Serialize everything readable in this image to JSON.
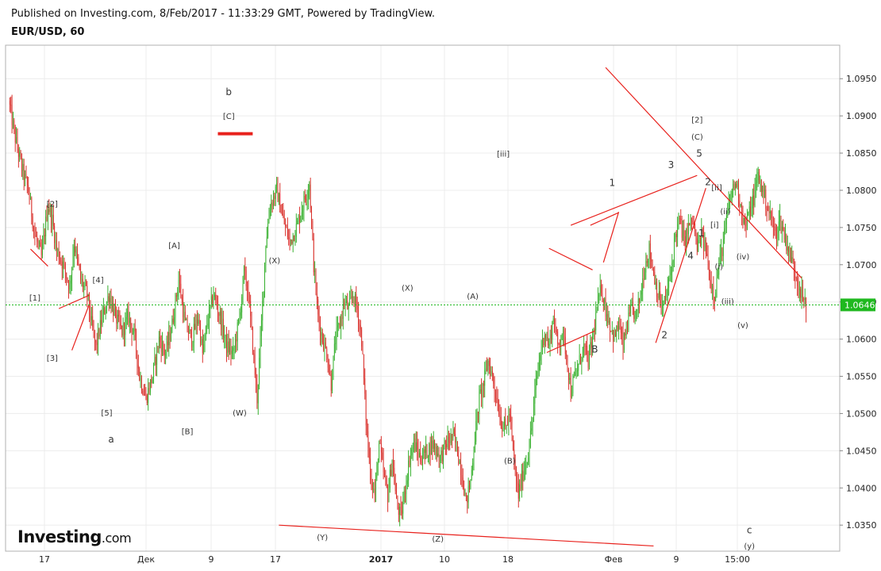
{
  "header": {
    "published": "Published on Investing.com, 8/Feb/2017 - 11:33:29 GMT, Powered by TradingView.",
    "symbol": "EUR/USD, 60"
  },
  "logo": {
    "main": "Investing",
    "suffix": ".com"
  },
  "colors": {
    "up": "#36b02d",
    "down": "#d9302b",
    "trend": "#e8211c",
    "current_line": "#1fb81f",
    "grid": "#ececec"
  },
  "chart_data": {
    "type": "candlestick",
    "symbol": "EUR/USD",
    "timeframe": "60",
    "ylim": [
      1.0315,
      1.0995
    ],
    "y_ticks": [
      "1.0950",
      "1.0900",
      "1.0850",
      "1.0800",
      "1.0750",
      "1.0700",
      "1.0650",
      "1.0600",
      "1.0550",
      "1.0500",
      "1.0450",
      "1.0400",
      "1.0350"
    ],
    "x_ticks": [
      "17",
      "Дек",
      "9",
      "17",
      "2017",
      "10",
      "18",
      "Фев",
      "9",
      "15:00"
    ],
    "current_price": "1.0646",
    "price_path": [
      [
        0,
        1.092
      ],
      [
        3,
        1.087
      ],
      [
        6,
        1.083
      ],
      [
        9,
        1.08
      ],
      [
        12,
        1.074
      ],
      [
        15,
        1.071
      ],
      [
        18,
        1.078
      ],
      [
        20,
        1.076
      ],
      [
        22,
        1.072
      ],
      [
        25,
        1.07
      ],
      [
        28,
        1.067
      ],
      [
        30,
        1.073
      ],
      [
        33,
        1.068
      ],
      [
        36,
        1.066
      ],
      [
        38,
        1.062
      ],
      [
        40,
        1.059
      ],
      [
        43,
        1.063
      ],
      [
        46,
        1.066
      ],
      [
        49,
        1.063
      ],
      [
        52,
        1.061
      ],
      [
        55,
        1.063
      ],
      [
        58,
        1.06
      ],
      [
        60,
        1.055
      ],
      [
        63,
        1.052
      ],
      [
        66,
        1.055
      ],
      [
        69,
        1.06
      ],
      [
        72,
        1.058
      ],
      [
        75,
        1.062
      ],
      [
        78,
        1.068
      ],
      [
        81,
        1.062
      ],
      [
        84,
        1.06
      ],
      [
        87,
        1.063
      ],
      [
        89,
        1.058
      ],
      [
        91,
        1.062
      ],
      [
        94,
        1.066
      ],
      [
        97,
        1.063
      ],
      [
        100,
        1.059
      ],
      [
        103,
        1.058
      ],
      [
        106,
        1.063
      ],
      [
        108,
        1.069
      ],
      [
        110,
        1.066
      ],
      [
        112,
        1.059
      ],
      [
        114,
        1.052
      ],
      [
        116,
        1.062
      ],
      [
        118,
        1.073
      ],
      [
        120,
        1.078
      ],
      [
        123,
        1.08
      ],
      [
        126,
        1.076
      ],
      [
        129,
        1.073
      ],
      [
        132,
        1.075
      ],
      [
        135,
        1.078
      ],
      [
        138,
        1.081
      ],
      [
        140,
        1.07
      ],
      [
        142,
        1.063
      ],
      [
        144,
        1.06
      ],
      [
        146,
        1.058
      ],
      [
        148,
        1.054
      ],
      [
        150,
        1.06
      ],
      [
        152,
        1.062
      ],
      [
        154,
        1.065
      ],
      [
        156,
        1.064
      ],
      [
        158,
        1.066
      ],
      [
        160,
        1.064
      ],
      [
        162,
        1.06
      ],
      [
        164,
        1.049
      ],
      [
        166,
        1.042
      ],
      [
        168,
        1.039
      ],
      [
        170,
        1.046
      ],
      [
        172,
        1.042
      ],
      [
        174,
        1.039
      ],
      [
        176,
        1.044
      ],
      [
        178,
        1.038
      ],
      [
        180,
        1.036
      ],
      [
        182,
        1.04
      ],
      [
        184,
        1.044
      ],
      [
        186,
        1.046
      ],
      [
        189,
        1.044
      ],
      [
        192,
        1.045
      ],
      [
        195,
        1.046
      ],
      [
        198,
        1.044
      ],
      [
        201,
        1.046
      ],
      [
        204,
        1.047
      ],
      [
        206,
        1.045
      ],
      [
        208,
        1.042
      ],
      [
        210,
        1.038
      ],
      [
        212,
        1.041
      ],
      [
        214,
        1.047
      ],
      [
        216,
        1.052
      ],
      [
        218,
        1.054
      ],
      [
        220,
        1.057
      ],
      [
        222,
        1.055
      ],
      [
        224,
        1.052
      ],
      [
        226,
        1.049
      ],
      [
        228,
        1.048
      ],
      [
        230,
        1.05
      ],
      [
        232,
        1.043
      ],
      [
        234,
        1.039
      ],
      [
        236,
        1.042
      ],
      [
        238,
        1.044
      ],
      [
        240,
        1.048
      ],
      [
        242,
        1.054
      ],
      [
        244,
        1.058
      ],
      [
        246,
        1.061
      ],
      [
        248,
        1.059
      ],
      [
        250,
        1.063
      ],
      [
        252,
        1.059
      ],
      [
        254,
        1.061
      ],
      [
        256,
        1.058
      ],
      [
        258,
        1.053
      ],
      [
        260,
        1.055
      ],
      [
        262,
        1.057
      ],
      [
        264,
        1.059
      ],
      [
        266,
        1.057
      ],
      [
        268,
        1.06
      ],
      [
        270,
        1.064
      ],
      [
        272,
        1.067
      ],
      [
        274,
        1.064
      ],
      [
        276,
        1.062
      ],
      [
        278,
        1.06
      ],
      [
        280,
        1.062
      ],
      [
        282,
        1.059
      ],
      [
        284,
        1.062
      ],
      [
        286,
        1.064
      ],
      [
        288,
        1.063
      ],
      [
        290,
        1.066
      ],
      [
        292,
        1.07
      ],
      [
        294,
        1.072
      ],
      [
        296,
        1.069
      ],
      [
        298,
        1.066
      ],
      [
        300,
        1.064
      ],
      [
        302,
        1.066
      ],
      [
        304,
        1.069
      ],
      [
        306,
        1.074
      ],
      [
        308,
        1.076
      ],
      [
        310,
        1.073
      ],
      [
        312,
        1.075
      ],
      [
        314,
        1.076
      ],
      [
        316,
        1.072
      ],
      [
        318,
        1.074
      ],
      [
        320,
        1.072
      ],
      [
        322,
        1.068
      ],
      [
        324,
        1.066
      ],
      [
        326,
        1.07
      ],
      [
        328,
        1.073
      ],
      [
        330,
        1.077
      ],
      [
        332,
        1.08
      ],
      [
        334,
        1.081
      ],
      [
        336,
        1.078
      ],
      [
        338,
        1.075
      ],
      [
        340,
        1.077
      ],
      [
        342,
        1.079
      ],
      [
        344,
        1.082
      ],
      [
        346,
        1.08
      ],
      [
        348,
        1.078
      ],
      [
        350,
        1.076
      ],
      [
        352,
        1.074
      ],
      [
        354,
        1.076
      ],
      [
        356,
        1.074
      ],
      [
        358,
        1.072
      ],
      [
        360,
        1.07
      ],
      [
        362,
        1.068
      ],
      [
        364,
        1.066
      ],
      [
        366,
        1.064
      ]
    ],
    "annotations": [
      {
        "text": "b",
        "x": 101,
        "y": 1.0928,
        "size": 12
      },
      {
        "text": "[C]",
        "x": 101,
        "y": 1.0896,
        "size": 10
      },
      {
        "text": "[2]",
        "x": 20,
        "y": 1.0778,
        "size": 10
      },
      {
        "text": "[4]",
        "x": 41,
        "y": 1.0676,
        "size": 10
      },
      {
        "text": "[1]",
        "x": 12,
        "y": 1.0652,
        "size": 10
      },
      {
        "text": "[3]",
        "x": 20,
        "y": 1.0571,
        "size": 10
      },
      {
        "text": "[5]",
        "x": 45,
        "y": 1.0497,
        "size": 10
      },
      {
        "text": "a",
        "x": 47,
        "y": 1.0461,
        "size": 12
      },
      {
        "text": "[A]",
        "x": 76,
        "y": 1.0722,
        "size": 10
      },
      {
        "text": "[B]",
        "x": 82,
        "y": 1.0472,
        "size": 10
      },
      {
        "text": "(X)",
        "x": 122,
        "y": 1.0702,
        "size": 10
      },
      {
        "text": "(W)",
        "x": 106,
        "y": 1.0497,
        "size": 10
      },
      {
        "text": "(X)",
        "x": 183,
        "y": 1.0665,
        "size": 10
      },
      {
        "text": "(Y)",
        "x": 144,
        "y": 1.033,
        "size": 10
      },
      {
        "text": "(Z)",
        "x": 197,
        "y": 1.0328,
        "size": 10
      },
      {
        "text": "(A)",
        "x": 213,
        "y": 1.0654,
        "size": 10
      },
      {
        "text": "(B)",
        "x": 230,
        "y": 1.0433,
        "size": 10
      },
      {
        "text": "[iii]",
        "x": 227,
        "y": 1.0845,
        "size": 10
      },
      {
        "text": "1",
        "x": 277,
        "y": 1.0806,
        "size": 12
      },
      {
        "text": "B",
        "x": 269,
        "y": 1.0582,
        "size": 12
      },
      {
        "text": "3",
        "x": 304,
        "y": 1.083,
        "size": 12
      },
      {
        "text": "[2]",
        "x": 316,
        "y": 1.0891,
        "size": 10
      },
      {
        "text": "(C)",
        "x": 316,
        "y": 1.0868,
        "size": 10
      },
      {
        "text": "5",
        "x": 317,
        "y": 1.0845,
        "size": 12
      },
      {
        "text": "2",
        "x": 321,
        "y": 1.0807,
        "size": 12
      },
      {
        "text": "[ii]",
        "x": 325,
        "y": 1.08,
        "size": 10
      },
      {
        "text": "(ii)",
        "x": 329,
        "y": 1.0768,
        "size": 10
      },
      {
        "text": "[i]",
        "x": 324,
        "y": 1.075,
        "size": 10
      },
      {
        "text": "1",
        "x": 318,
        "y": 1.0738,
        "size": 12
      },
      {
        "text": "4",
        "x": 313,
        "y": 1.0708,
        "size": 12
      },
      {
        "text": "(iv)",
        "x": 337,
        "y": 1.0707,
        "size": 10
      },
      {
        "text": "(i)",
        "x": 326,
        "y": 1.0694,
        "size": 10
      },
      {
        "text": "(iii)",
        "x": 330,
        "y": 1.0647,
        "size": 10
      },
      {
        "text": "(v)",
        "x": 337,
        "y": 1.0615,
        "size": 10
      },
      {
        "text": "2",
        "x": 301,
        "y": 1.0601,
        "size": 12
      },
      {
        "text": "c",
        "x": 340,
        "y": 1.0339,
        "size": 12
      },
      {
        "text": "(y)",
        "x": 340,
        "y": 1.0318,
        "size": 10
      }
    ],
    "trendlines": [
      [
        [
          124,
          1.035
        ],
        [
          296,
          1.0322
        ]
      ],
      [
        [
          274,
          1.0965
        ],
        [
          364,
          1.0682
        ]
      ],
      [
        [
          258,
          1.0753
        ],
        [
          316,
          1.082
        ]
      ],
      [
        [
          247,
          1.0582
        ],
        [
          269,
          1.0611
        ]
      ],
      [
        [
          248,
          1.0722
        ],
        [
          268,
          1.0693
        ]
      ],
      [
        [
          267,
          1.0753
        ],
        [
          280,
          1.077
        ]
      ],
      [
        [
          273,
          1.0703
        ],
        [
          280,
          1.0771
        ]
      ],
      [
        [
          297,
          1.0595
        ],
        [
          320,
          1.0803
        ]
      ],
      [
        [
          10,
          1.0721
        ],
        [
          18,
          1.0698
        ]
      ],
      [
        [
          23,
          1.0641
        ],
        [
          37,
          1.0659
        ]
      ],
      [
        [
          29,
          1.0585
        ],
        [
          37,
          1.0647
        ]
      ],
      [
        [
          96,
          1.0876
        ],
        [
          112,
          1.0876
        ]
      ]
    ]
  }
}
